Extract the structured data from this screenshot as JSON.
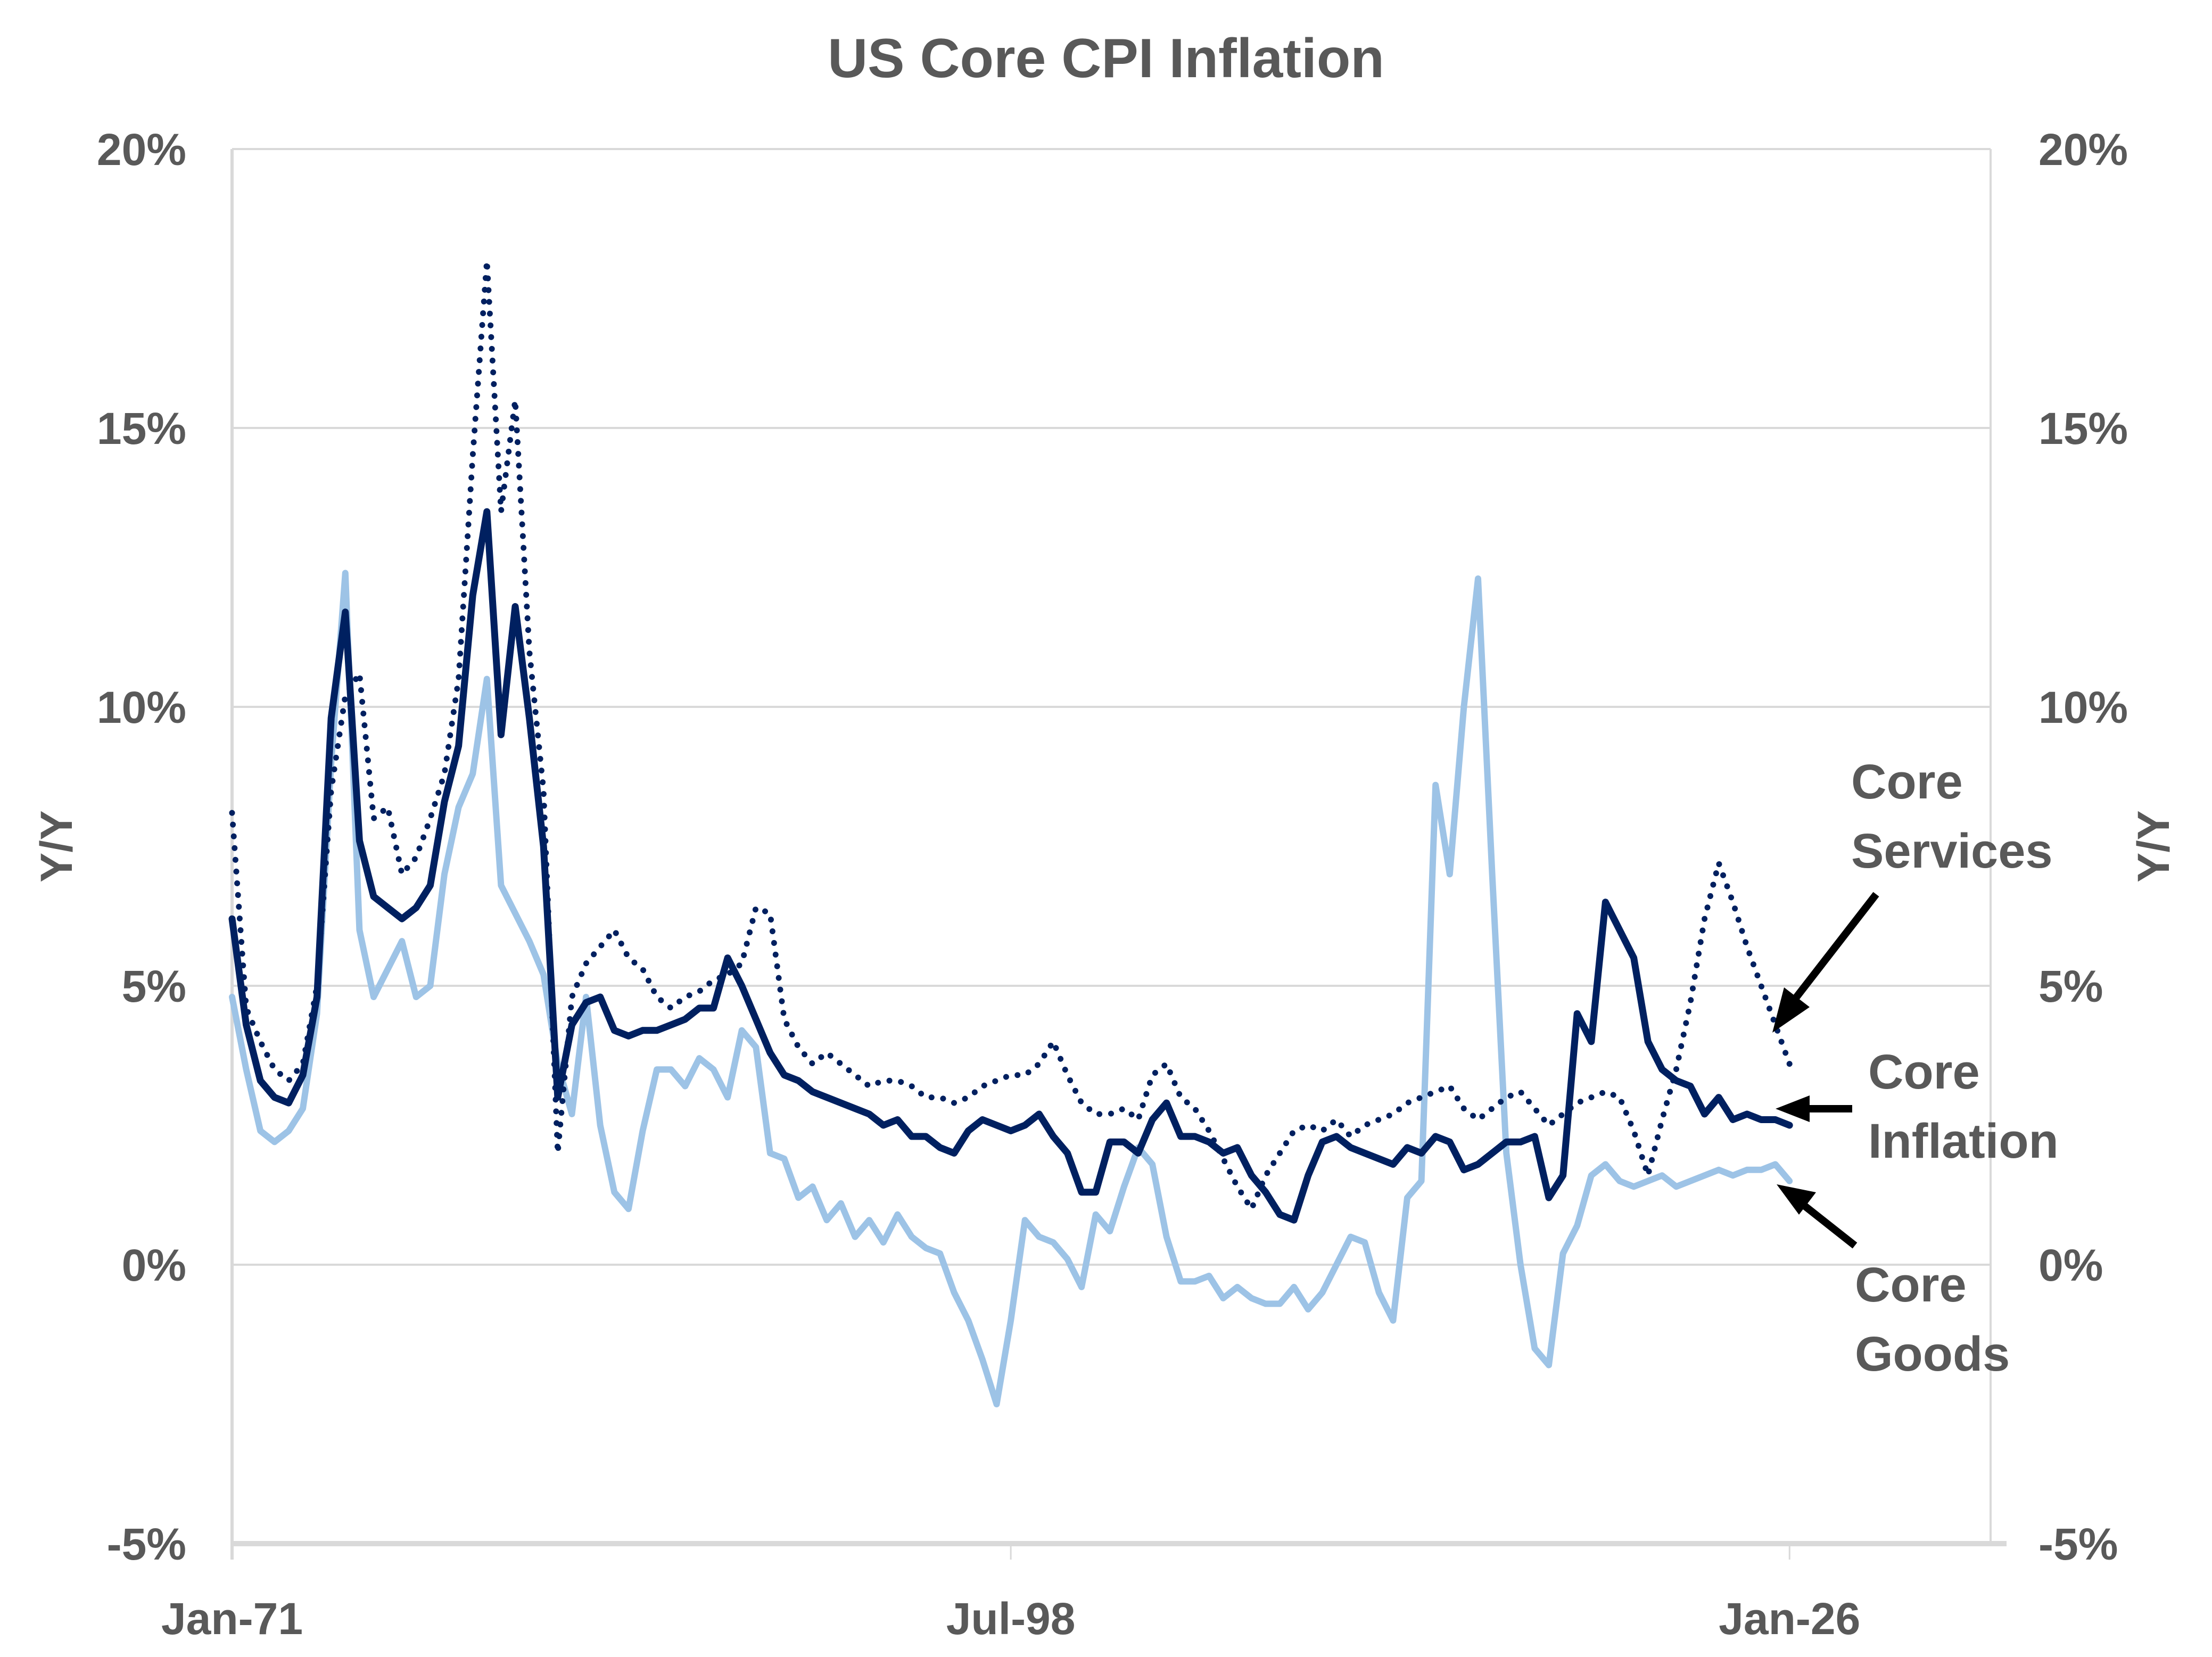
{
  "chart_data": {
    "type": "line",
    "title": "US Core CPI Inflation",
    "ylabel_left": "Y/Y",
    "ylabel_right": "Y/Y",
    "xlabel": "",
    "ylim": [
      -5,
      20
    ],
    "xlim": [
      1971.0,
      2033.1
    ],
    "grid": true,
    "y_ticks": [
      {
        "value": 20,
        "label": "20%"
      },
      {
        "value": 15,
        "label": "15%"
      },
      {
        "value": 10,
        "label": "10%"
      },
      {
        "value": 5,
        "label": "5%"
      },
      {
        "value": 0,
        "label": "0%"
      },
      {
        "value": -5,
        "label": "-5%"
      }
    ],
    "x_ticks": [
      {
        "value": 1971.0,
        "label": "Jan-71"
      },
      {
        "value": 1998.5,
        "label": "Jul-98"
      },
      {
        "value": 2026.0,
        "label": "Jan-26"
      }
    ],
    "x": [
      1971.0,
      1971.5,
      1972.0,
      1972.5,
      1973.0,
      1973.5,
      1974.0,
      1974.5,
      1975.0,
      1975.5,
      1976.0,
      1976.5,
      1977.0,
      1977.5,
      1978.0,
      1978.5,
      1979.0,
      1979.5,
      1980.0,
      1980.5,
      1981.0,
      1981.5,
      1982.0,
      1982.5,
      1983.0,
      1983.5,
      1984.0,
      1984.5,
      1985.0,
      1985.5,
      1986.0,
      1986.5,
      1987.0,
      1987.5,
      1988.0,
      1988.5,
      1989.0,
      1989.5,
      1990.0,
      1990.5,
      1991.0,
      1991.5,
      1992.0,
      1992.5,
      1993.0,
      1993.5,
      1994.0,
      1994.5,
      1995.0,
      1995.5,
      1996.0,
      1996.5,
      1997.0,
      1997.5,
      1998.0,
      1998.5,
      1999.0,
      1999.5,
      2000.0,
      2000.5,
      2001.0,
      2001.5,
      2002.0,
      2002.5,
      2003.0,
      2003.5,
      2004.0,
      2004.5,
      2005.0,
      2005.5,
      2006.0,
      2006.5,
      2007.0,
      2007.5,
      2008.0,
      2008.5,
      2009.0,
      2009.5,
      2010.0,
      2010.5,
      2011.0,
      2011.5,
      2012.0,
      2012.5,
      2013.0,
      2013.5,
      2014.0,
      2014.5,
      2015.0,
      2015.5,
      2016.0,
      2016.5,
      2017.0,
      2017.5,
      2018.0,
      2018.5,
      2019.0,
      2019.5,
      2020.0,
      2020.5,
      2021.0,
      2021.5,
      2022.0,
      2022.5,
      2023.0,
      2023.5,
      2024.0,
      2024.5,
      2025.0,
      2025.5,
      2026.0
    ],
    "series": [
      {
        "name": "Core Services",
        "style": "dotted",
        "color": "#002060",
        "values": [
          8.1,
          4.6,
          4.0,
          3.5,
          3.3,
          3.6,
          5.0,
          8.5,
          10.2,
          10.6,
          8.0,
          8.2,
          7.0,
          7.3,
          8.0,
          8.8,
          10.5,
          14.5,
          18.0,
          13.5,
          15.5,
          11.0,
          8.5,
          2.0,
          4.8,
          5.4,
          5.7,
          6.0,
          5.5,
          5.3,
          4.8,
          4.6,
          4.8,
          4.9,
          5.1,
          5.2,
          5.4,
          6.4,
          6.3,
          4.4,
          3.9,
          3.6,
          3.8,
          3.6,
          3.4,
          3.2,
          3.3,
          3.3,
          3.2,
          3.0,
          3.0,
          2.9,
          3.0,
          3.2,
          3.3,
          3.4,
          3.4,
          3.6,
          4.0,
          3.4,
          2.9,
          2.7,
          2.7,
          2.8,
          2.6,
          3.4,
          3.6,
          3.0,
          2.8,
          2.4,
          1.9,
          1.4,
          1.0,
          1.6,
          2.0,
          2.4,
          2.5,
          2.4,
          2.6,
          2.3,
          2.5,
          2.6,
          2.7,
          2.9,
          3.0,
          3.1,
          3.2,
          2.8,
          2.6,
          2.8,
          3.0,
          3.1,
          2.8,
          2.5,
          2.7,
          2.9,
          3.0,
          3.1,
          3.0,
          2.4,
          1.6,
          2.6,
          3.5,
          4.7,
          6.2,
          7.2,
          6.5,
          5.7,
          5.0,
          4.3,
          3.6
        ]
      },
      {
        "name": "Core Inflation",
        "style": "solid",
        "color": "#002060",
        "values": [
          6.2,
          4.3,
          3.3,
          3.0,
          2.9,
          3.4,
          4.8,
          9.8,
          11.7,
          7.6,
          6.6,
          6.4,
          6.2,
          6.4,
          6.8,
          8.3,
          9.3,
          12.0,
          13.5,
          9.5,
          11.8,
          9.8,
          7.5,
          3.0,
          4.3,
          4.7,
          4.8,
          4.2,
          4.1,
          4.2,
          4.2,
          4.3,
          4.4,
          4.6,
          4.6,
          5.5,
          5.0,
          4.4,
          3.8,
          3.4,
          3.3,
          3.1,
          3.0,
          2.9,
          2.8,
          2.7,
          2.5,
          2.6,
          2.3,
          2.3,
          2.1,
          2.0,
          2.4,
          2.6,
          2.5,
          2.4,
          2.5,
          2.7,
          2.3,
          2.0,
          1.3,
          1.3,
          2.2,
          2.2,
          2.0,
          2.6,
          2.9,
          2.3,
          2.3,
          2.2,
          2.0,
          2.1,
          1.6,
          1.3,
          0.9,
          0.8,
          1.6,
          2.2,
          2.3,
          2.1,
          2.0,
          1.9,
          1.8,
          2.1,
          2.0,
          2.3,
          2.2,
          1.7,
          1.8,
          2.0,
          2.2,
          2.2,
          2.3,
          1.2,
          1.6,
          4.5,
          4.0,
          6.5,
          6.0,
          5.5,
          4.0,
          3.5,
          3.3,
          3.2,
          2.7,
          3.0,
          2.6,
          2.7,
          2.6,
          2.6,
          2.5
        ]
      },
      {
        "name": "Core Goods",
        "style": "solid",
        "color": "#9DC3E6",
        "values": [
          4.8,
          3.5,
          2.4,
          2.2,
          2.4,
          2.8,
          4.5,
          9.0,
          12.4,
          6.0,
          4.8,
          5.3,
          5.8,
          4.8,
          5.0,
          7.0,
          8.2,
          8.8,
          10.5,
          6.8,
          6.3,
          5.8,
          5.2,
          3.6,
          2.7,
          4.8,
          2.5,
          1.3,
          1.0,
          2.4,
          3.5,
          3.5,
          3.2,
          3.7,
          3.5,
          3.0,
          4.2,
          3.9,
          2.0,
          1.9,
          1.2,
          1.4,
          0.8,
          1.1,
          0.5,
          0.8,
          0.4,
          0.9,
          0.5,
          0.3,
          0.2,
          -0.5,
          -1.0,
          -1.7,
          -2.5,
          -1.0,
          0.8,
          0.5,
          0.4,
          0.1,
          -0.4,
          0.9,
          0.6,
          1.4,
          2.1,
          1.8,
          0.5,
          -0.3,
          -0.3,
          -0.2,
          -0.6,
          -0.4,
          -0.6,
          -0.7,
          -0.7,
          -0.4,
          -0.8,
          -0.5,
          0.0,
          0.5,
          0.4,
          -0.5,
          -1.0,
          1.2,
          1.5,
          8.6,
          7.0,
          10.0,
          12.3,
          7.0,
          2.0,
          0.0,
          -1.5,
          -1.8,
          0.2,
          0.7,
          1.6,
          1.8,
          1.5,
          1.4,
          1.5,
          1.6,
          1.4,
          1.5,
          1.6,
          1.7,
          1.6,
          1.7,
          1.7,
          1.8,
          1.5
        ]
      }
    ],
    "annotations": [
      {
        "lines": [
          "Core",
          "Services"
        ],
        "target_series": "Core Services"
      },
      {
        "lines": [
          "Core",
          "Inflation"
        ],
        "target_series": "Core Inflation"
      },
      {
        "lines": [
          "Core",
          "Goods"
        ],
        "target_series": "Core Goods"
      }
    ],
    "legend": "none (inline arrow annotations at right)"
  }
}
